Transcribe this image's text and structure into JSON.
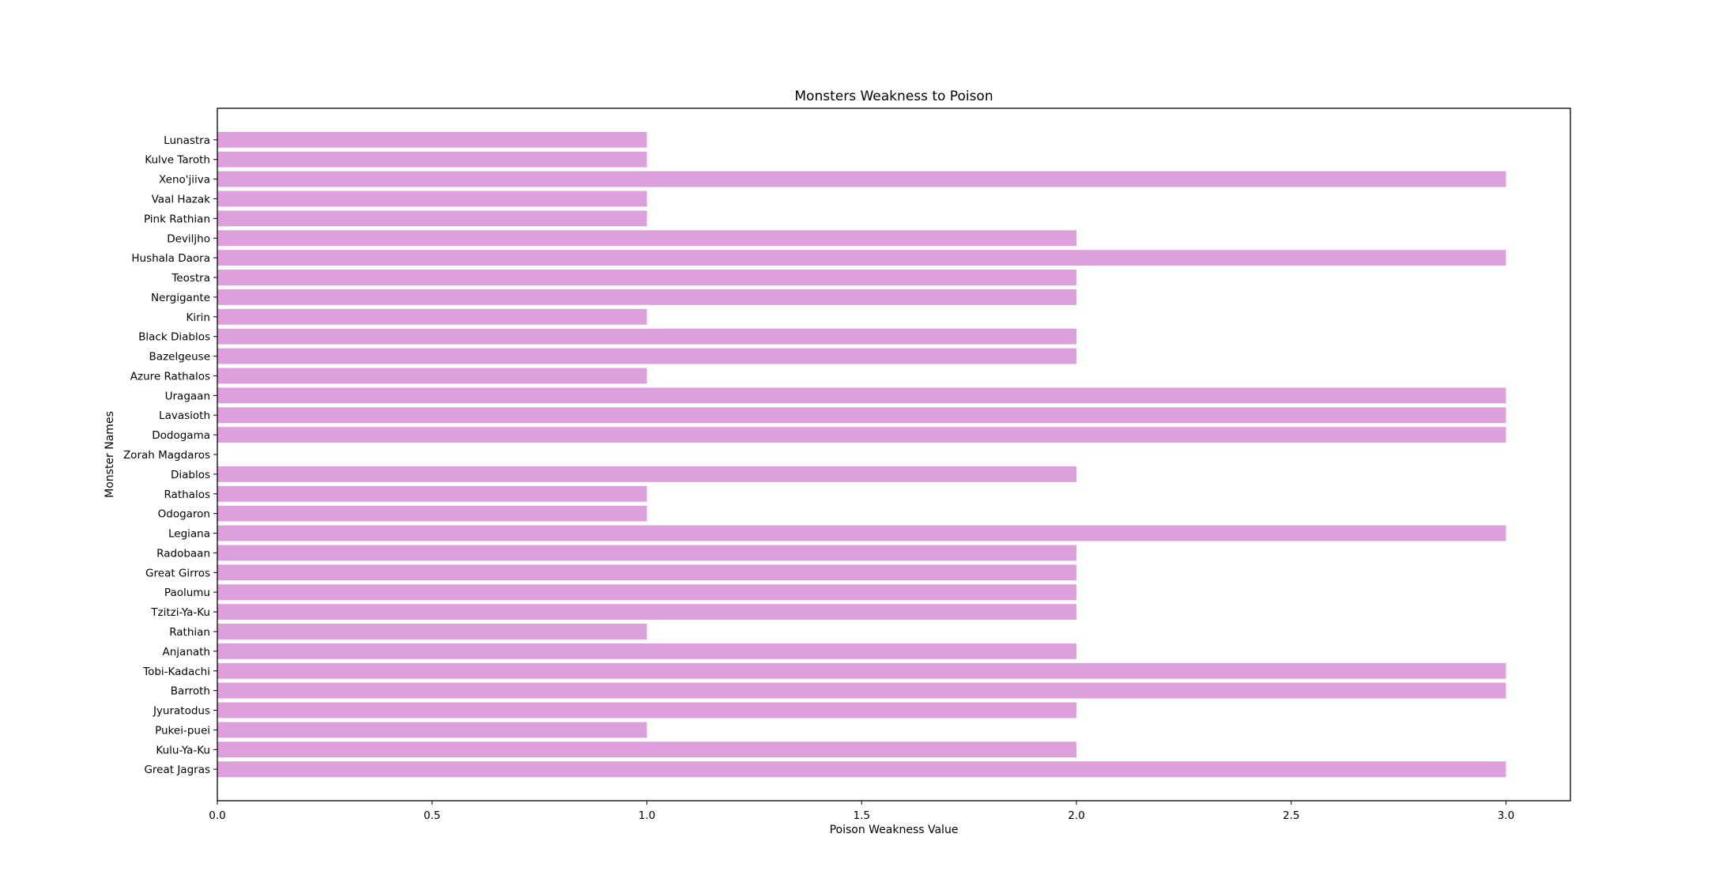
{
  "chart_data": {
    "type": "bar",
    "orientation": "horizontal",
    "title": "Monsters Weakness to Poison",
    "xlabel": "Poison Weakness Value",
    "ylabel": "Monster Names",
    "xlim": [
      0,
      3.15
    ],
    "xticks": [
      "0.0",
      "0.5",
      "1.0",
      "1.5",
      "2.0",
      "2.5",
      "3.0"
    ],
    "bar_color": "#dda0dd",
    "categories": [
      "Great Jagras",
      "Kulu-Ya-Ku",
      "Pukei-puei",
      "Jyuratodus",
      "Barroth",
      "Tobi-Kadachi",
      "Anjanath",
      "Rathian",
      "Tzitzi-Ya-Ku",
      "Paolumu",
      "Great Girros",
      "Radobaan",
      "Legiana",
      "Odogaron",
      "Rathalos",
      "Diablos",
      "Zorah Magdaros",
      "Dodogama",
      "Lavasioth",
      "Uragaan",
      "Azure Rathalos",
      "Bazelgeuse",
      "Black Diablos",
      "Kirin",
      "Nergigante",
      "Teostra",
      "Hushala Daora",
      "Deviljho",
      "Pink Rathian",
      "Vaal Hazak",
      "Xeno'jiiva",
      "Kulve Taroth",
      "Lunastra"
    ],
    "values": [
      3,
      2,
      1,
      2,
      3,
      3,
      2,
      1,
      2,
      2,
      2,
      2,
      3,
      1,
      1,
      2,
      0,
      3,
      3,
      3,
      1,
      2,
      2,
      1,
      2,
      2,
      3,
      2,
      1,
      1,
      3,
      1,
      1
    ],
    "grid": false
  }
}
